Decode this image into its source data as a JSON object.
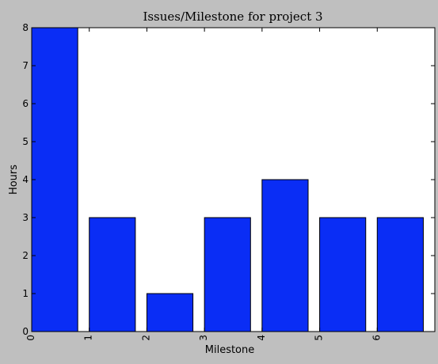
{
  "chart_data": {
    "type": "bar",
    "title": "Issues/Milestone for project 3",
    "xlabel": "Milestone",
    "ylabel": "Hours",
    "categories": [
      "0",
      "1",
      "2",
      "3",
      "4",
      "5",
      "6"
    ],
    "values": [
      8,
      3,
      1,
      3,
      4,
      3,
      3
    ],
    "yticks": [
      "0",
      "1",
      "2",
      "3",
      "4",
      "5",
      "6",
      "7",
      "8"
    ],
    "ylim": [
      0,
      8
    ],
    "xlim": [
      0,
      7
    ],
    "grid": false,
    "bar_color": "#0a2df5",
    "background_color": "#bfbfbf",
    "plot_background": "#ffffff"
  }
}
